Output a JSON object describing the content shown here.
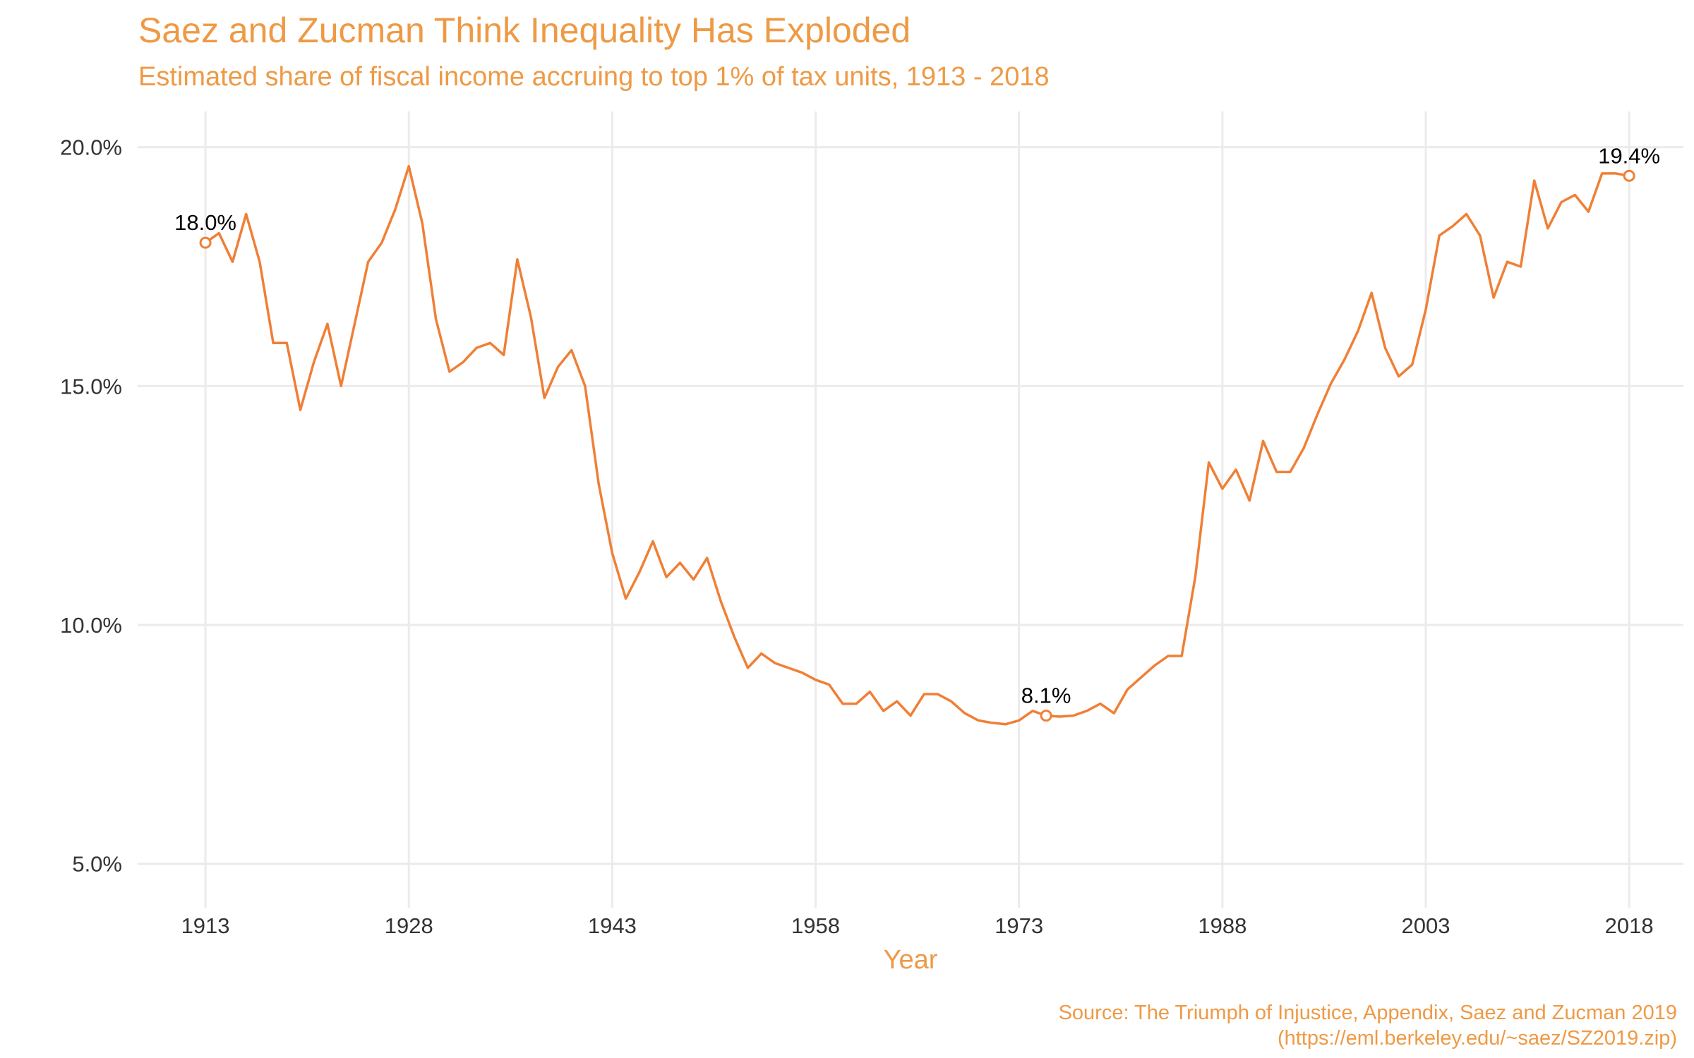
{
  "colors": {
    "accent": "#ee9a45",
    "line": "#f07f36",
    "grid": "#ebebeb",
    "text": "#333333"
  },
  "chart_data": {
    "type": "line",
    "title": "Saez and Zucman Think Inequality Has Exploded",
    "subtitle": "Estimated share of fiscal income accruing to top 1% of tax units, 1913 - 2018",
    "xlabel": "Year",
    "ylabel": "",
    "caption": [
      "Source: The Triumph of Injustice, Appendix, Saez and Zucman 2019",
      "(https://eml.berkeley.edu/~saez/SZ2019.zip)"
    ],
    "xlim": [
      1908,
      2022
    ],
    "ylim": [
      4.3,
      20.6
    ],
    "x_ticks": [
      1913,
      1928,
      1943,
      1958,
      1973,
      1988,
      2003,
      2018
    ],
    "x_tick_labels": [
      "1913",
      "1928",
      "1943",
      "1958",
      "1973",
      "1988",
      "2003",
      "2018"
    ],
    "y_ticks": [
      5,
      10,
      15,
      20
    ],
    "y_tick_labels": [
      "5.0%",
      "10.0%",
      "15.0%",
      "20.0%"
    ],
    "grid": true,
    "legend": "none",
    "series": [
      {
        "x": [
          1913,
          1914,
          1915,
          1916,
          1917,
          1918,
          1919,
          1920,
          1921,
          1922,
          1923,
          1924,
          1925,
          1926,
          1927,
          1928,
          1929,
          1930,
          1931,
          1932,
          1933,
          1934,
          1935,
          1936,
          1937,
          1938,
          1939,
          1940,
          1941,
          1942,
          1943,
          1944,
          1945,
          1946,
          1947,
          1948,
          1949,
          1950,
          1951,
          1952,
          1953,
          1954,
          1955,
          1956,
          1957,
          1958,
          1959,
          1960,
          1961,
          1962,
          1963,
          1964,
          1965,
          1966,
          1967,
          1968,
          1969,
          1970,
          1971,
          1972,
          1973,
          1974,
          1975,
          1976,
          1977,
          1978,
          1979,
          1980,
          1981,
          1982,
          1983,
          1984,
          1985,
          1986,
          1987,
          1988,
          1989,
          1990,
          1991,
          1992,
          1993,
          1994,
          1995,
          1996,
          1997,
          1998,
          1999,
          2000,
          2001,
          2002,
          2003,
          2004,
          2005,
          2006,
          2007,
          2008,
          2009,
          2010,
          2011,
          2012,
          2013,
          2014,
          2015,
          2016,
          2017,
          2018
        ],
        "values": [
          18.0,
          18.2,
          17.6,
          18.6,
          17.6,
          15.9,
          15.9,
          14.5,
          15.5,
          16.3,
          15.0,
          16.3,
          17.6,
          18.0,
          18.7,
          19.6,
          18.4,
          16.4,
          15.3,
          15.5,
          15.8,
          15.9,
          15.65,
          17.65,
          16.45,
          14.75,
          15.4,
          15.75,
          15.0,
          12.95,
          11.5,
          10.55,
          11.1,
          11.75,
          11.0,
          11.3,
          10.95,
          11.4,
          10.5,
          9.75,
          9.1,
          9.4,
          9.2,
          9.1,
          9.0,
          8.85,
          8.75,
          8.35,
          8.35,
          8.6,
          8.2,
          8.4,
          8.1,
          8.55,
          8.55,
          8.4,
          8.15,
          8.0,
          7.95,
          7.92,
          8.0,
          8.2,
          8.1,
          8.08,
          8.1,
          8.2,
          8.35,
          8.15,
          8.65,
          8.9,
          9.15,
          9.35,
          9.35,
          11.0,
          13.4,
          12.85,
          13.25,
          12.6,
          13.85,
          13.2,
          13.2,
          13.7,
          14.4,
          15.05,
          15.55,
          16.15,
          16.95,
          15.8,
          15.2,
          15.45,
          16.6,
          18.15,
          18.35,
          18.6,
          18.15,
          16.85,
          17.6,
          17.5,
          19.3,
          18.3,
          18.85,
          19.0,
          18.65,
          19.45,
          19.45,
          19.4
        ]
      }
    ],
    "annotations": [
      {
        "x": 1913,
        "y": 18.0,
        "label": "18.0%"
      },
      {
        "x": 1975,
        "y": 8.1,
        "label": "8.1%"
      },
      {
        "x": 2018,
        "y": 19.4,
        "label": "19.4%"
      }
    ]
  }
}
